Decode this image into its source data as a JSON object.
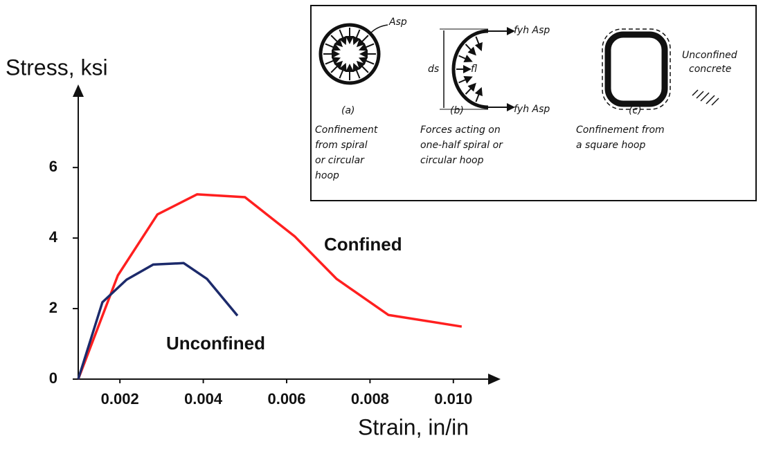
{
  "chart_data": {
    "type": "line",
    "xlabel": "Strain, in/in",
    "ylabel": "Stress, ksi",
    "xlim": [
      0.001,
      0.011
    ],
    "ylim": [
      0,
      8.2
    ],
    "xticks": [
      0.002,
      0.004,
      0.006,
      0.008,
      {
        "value": 0.01,
        "label": "0.010"
      }
    ],
    "yticks": [
      0,
      2,
      4,
      6
    ],
    "series": [
      {
        "name": "Confined",
        "color": "#ff1f1f",
        "x": [
          0.001,
          0.00195,
          0.0029,
          0.00385,
          0.005,
          0.0062,
          0.0072,
          0.00844,
          0.0102
        ],
        "values": [
          0,
          2.94,
          4.67,
          5.24,
          5.16,
          4.04,
          2.84,
          1.82,
          1.49
        ]
      },
      {
        "name": "Unconfined",
        "color": "#1c2a6b",
        "x": [
          0.001,
          0.00158,
          0.00216,
          0.0028,
          0.00353,
          0.00409,
          0.00482
        ],
        "values": [
          0,
          2.18,
          2.82,
          3.25,
          3.29,
          2.84,
          1.8
        ]
      }
    ]
  },
  "inset": {
    "a": {
      "symbol": "Asp",
      "tag": "(a)",
      "caption": [
        "Confinement",
        "from spiral",
        "or circular",
        "hoop"
      ]
    },
    "b": {
      "force_top": "fyh Asp",
      "force_bottom": "fyh Asp",
      "dimension": "ds",
      "pressure": "fl",
      "tag": "(b)",
      "caption": [
        "Forces acting on",
        "one-half spiral or",
        "circular hoop"
      ]
    },
    "c": {
      "tag": "(c)",
      "caption": [
        "Confinement from",
        "a square hoop"
      ]
    },
    "legend": [
      "Unconfined",
      "concrete"
    ]
  }
}
